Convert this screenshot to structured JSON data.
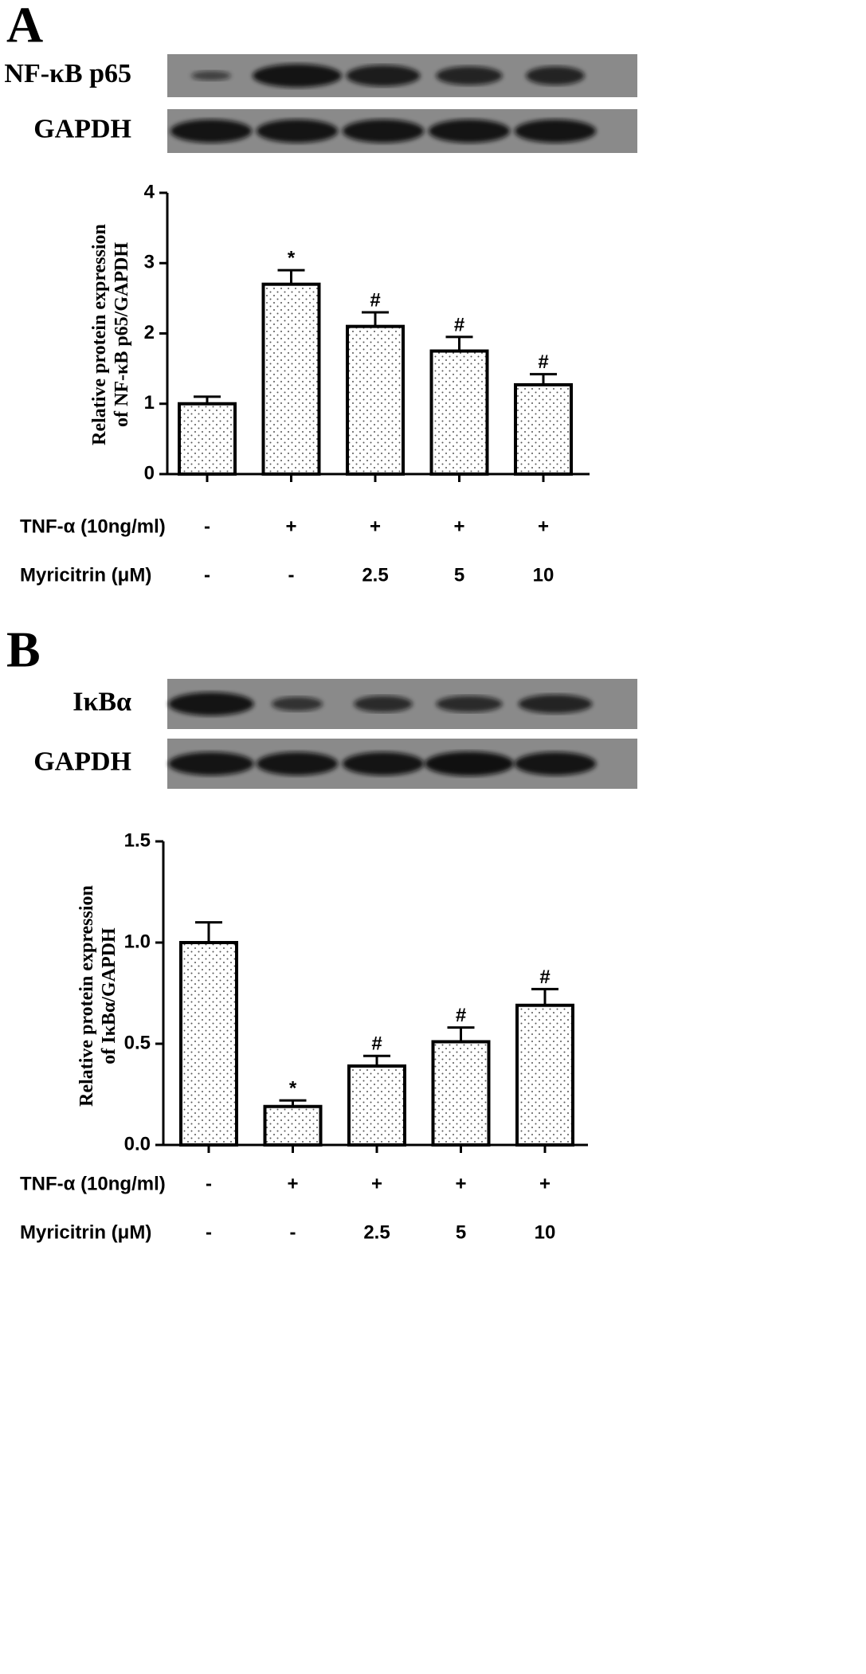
{
  "chart_data": [
    {
      "type": "bar",
      "panel": "A",
      "blot_labels": [
        "NF-κB p65",
        "GAPDH"
      ],
      "ylabel": [
        "Relative protein expression",
        "of NF-κB p65/GAPDH"
      ],
      "values": [
        1.0,
        2.7,
        2.1,
        1.75,
        1.27
      ],
      "errors": [
        0.1,
        0.2,
        0.2,
        0.2,
        0.15
      ],
      "annotations": [
        null,
        "*",
        "#",
        "#",
        "#"
      ],
      "conditions": [
        {
          "name": "TNF-α (10ng/ml)",
          "values": [
            "-",
            "+",
            "+",
            "+",
            "+"
          ]
        },
        {
          "name": "Myricitrin (μM)",
          "values": [
            "-",
            "-",
            "2.5",
            "5",
            "10"
          ]
        }
      ],
      "ylim": [
        0,
        4
      ],
      "yticks": [
        0,
        1,
        2,
        3,
        4
      ],
      "color": "#ffffff"
    },
    {
      "type": "bar",
      "panel": "B",
      "blot_labels": [
        "IκBα",
        "GAPDH"
      ],
      "ylabel": [
        "Relative protein expression",
        "of IκBα/GAPDH"
      ],
      "values": [
        1.0,
        0.19,
        0.39,
        0.51,
        0.69
      ],
      "errors": [
        0.1,
        0.03,
        0.05,
        0.07,
        0.08
      ],
      "annotations": [
        null,
        "*",
        "#",
        "#",
        "#"
      ],
      "conditions": [
        {
          "name": "TNF-α (10ng/ml)",
          "values": [
            "-",
            "+",
            "+",
            "+",
            "+"
          ]
        },
        {
          "name": "Myricitrin (μM)",
          "values": [
            "-",
            "-",
            "2.5",
            "5",
            "10"
          ]
        }
      ],
      "ylim": [
        0,
        1.5
      ],
      "yticks": [
        {
          "value": 0,
          "label": "0.0"
        },
        0.5,
        {
          "value": 1,
          "label": "1.0"
        },
        1.5
      ],
      "color": "#ffffff"
    }
  ]
}
